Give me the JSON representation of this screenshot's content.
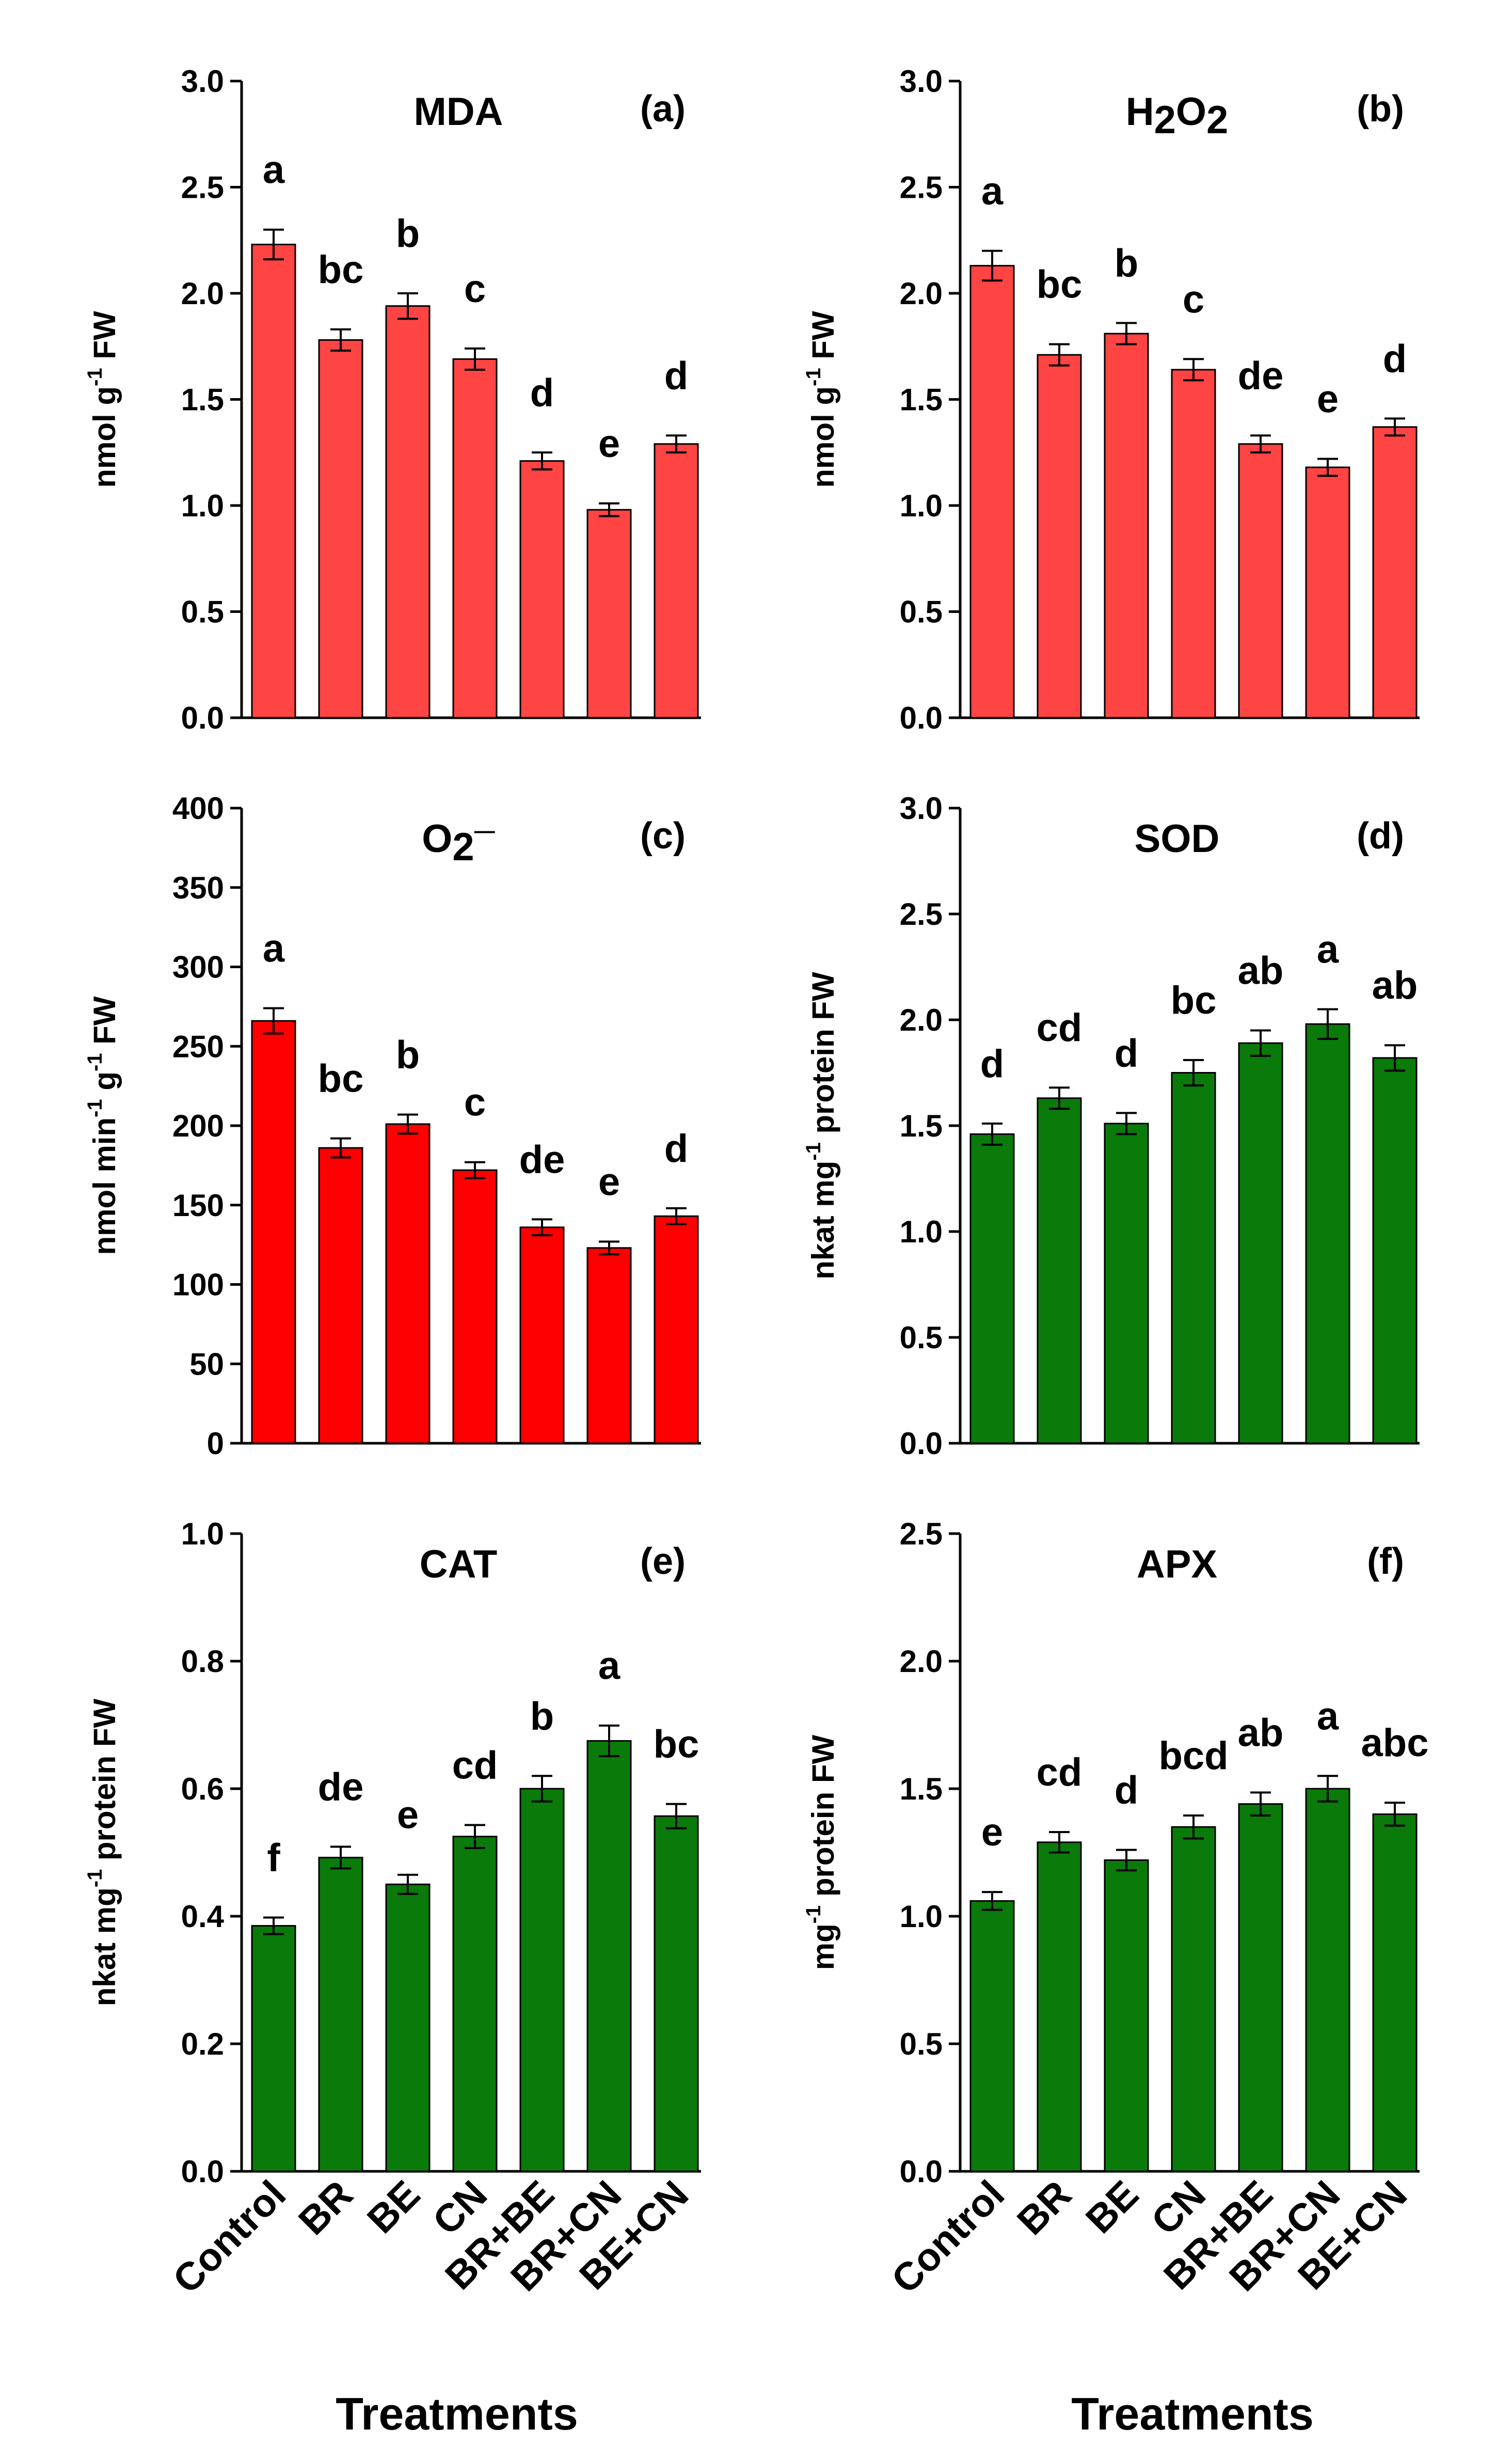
{
  "figure": {
    "x_axis_title": "Treatments",
    "colors": {
      "red": "#ff4444",
      "bright_red": "#ff0000",
      "green": "#0a7a0a"
    }
  },
  "chart_data": [
    {
      "type": "bar",
      "id": "a",
      "title": "MDA",
      "panel_label": "(a)",
      "ylabel": "nmol g",
      "ylabel_sup": "-1",
      "ylabel_suffix": " FW",
      "categories": [
        "Control",
        "BR",
        "BE",
        "CN",
        "BR+BE",
        "BR+CN",
        "BE+CN"
      ],
      "values": [
        2.23,
        1.78,
        1.94,
        1.69,
        1.21,
        0.98,
        1.29
      ],
      "errors": [
        0.07,
        0.05,
        0.06,
        0.05,
        0.04,
        0.03,
        0.04
      ],
      "letters": [
        "a",
        "bc",
        "b",
        "c",
        "d",
        "e",
        "d"
      ],
      "ylim": [
        0,
        3.0
      ],
      "yticks": [
        0,
        0.5,
        1.0,
        1.5,
        2.0,
        2.5,
        3.0
      ],
      "ytick_decimals": 1,
      "color": "#ff4444",
      "show_xticklabels": false
    },
    {
      "type": "bar",
      "id": "b",
      "title": "H",
      "title_sub": "2",
      "title_mid": "O",
      "title_sub2": "2",
      "panel_label": "(b)",
      "ylabel": "nmol g",
      "ylabel_sup": "-1",
      "ylabel_suffix": " FW",
      "categories": [
        "Control",
        "BR",
        "BE",
        "CN",
        "BR+BE",
        "BR+CN",
        "BE+CN"
      ],
      "values": [
        2.13,
        1.71,
        1.81,
        1.64,
        1.29,
        1.18,
        1.37
      ],
      "errors": [
        0.07,
        0.05,
        0.05,
        0.05,
        0.04,
        0.04,
        0.04
      ],
      "letters": [
        "a",
        "bc",
        "b",
        "c",
        "de",
        "e",
        "d"
      ],
      "ylim": [
        0,
        3.0
      ],
      "yticks": [
        0,
        0.5,
        1.0,
        1.5,
        2.0,
        2.5,
        3.0
      ],
      "ytick_decimals": 1,
      "color": "#ff4444",
      "show_xticklabels": false
    },
    {
      "type": "bar",
      "id": "c",
      "title": "O",
      "title_sub": "2",
      "title_sup": "—",
      "panel_label": "(c)",
      "ylabel": "nmol min",
      "ylabel_sup": "-1",
      "ylabel_mid": " g",
      "ylabel_sup2": "-1",
      "ylabel_suffix": " FW",
      "categories": [
        "Control",
        "BR",
        "BE",
        "CN",
        "BR+BE",
        "BR+CN",
        "BE+CN"
      ],
      "values": [
        266,
        186,
        201,
        172,
        136,
        123,
        143
      ],
      "errors": [
        8,
        6,
        6,
        5,
        5,
        4,
        5
      ],
      "letters": [
        "a",
        "bc",
        "b",
        "c",
        "de",
        "e",
        "d"
      ],
      "ylim": [
        0,
        400
      ],
      "yticks": [
        0,
        50,
        100,
        150,
        200,
        250,
        300,
        350,
        400
      ],
      "ytick_decimals": 0,
      "color": "#ff0000",
      "show_xticklabels": false
    },
    {
      "type": "bar",
      "id": "d",
      "title": "SOD",
      "panel_label": "(d)",
      "ylabel": "nkat mg",
      "ylabel_sup": "-1",
      "ylabel_suffix": " protein FW",
      "categories": [
        "Control",
        "BR",
        "BE",
        "CN",
        "BR+BE",
        "BR+CN",
        "BE+CN"
      ],
      "values": [
        1.46,
        1.63,
        1.51,
        1.75,
        1.89,
        1.98,
        1.82
      ],
      "errors": [
        0.05,
        0.05,
        0.05,
        0.06,
        0.06,
        0.07,
        0.06
      ],
      "letters": [
        "d",
        "cd",
        "d",
        "bc",
        "ab",
        "a",
        "ab"
      ],
      "ylim": [
        0,
        3.0
      ],
      "yticks": [
        0,
        0.5,
        1.0,
        1.5,
        2.0,
        2.5,
        3.0
      ],
      "ytick_decimals": 1,
      "color": "#0a7a0a",
      "show_xticklabels": false
    },
    {
      "type": "bar",
      "id": "e",
      "title": "CAT",
      "panel_label": "(e)",
      "ylabel": "nkat mg",
      "ylabel_sup": "-1",
      "ylabel_suffix": " protein FW",
      "categories": [
        "Control",
        "BR",
        "BE",
        "CN",
        "BR+BE",
        "BR+CN",
        "BE+CN"
      ],
      "values": [
        0.385,
        0.492,
        0.45,
        0.525,
        0.6,
        0.675,
        0.557
      ],
      "errors": [
        0.013,
        0.017,
        0.015,
        0.018,
        0.02,
        0.024,
        0.019
      ],
      "letters": [
        "f",
        "de",
        "e",
        "cd",
        "b",
        "a",
        "bc"
      ],
      "ylim": [
        0,
        1.0
      ],
      "yticks": [
        0,
        0.2,
        0.4,
        0.6,
        0.8,
        1.0
      ],
      "ytick_decimals": 1,
      "color": "#0a7a0a",
      "show_xticklabels": true
    },
    {
      "type": "bar",
      "id": "f",
      "title": "APX",
      "panel_label": "(f)",
      "ylabel": "mg",
      "ylabel_sup": "-1",
      "ylabel_suffix": " protein FW",
      "categories": [
        "Control",
        "BR",
        "BE",
        "CN",
        "BR+BE",
        "BR+CN",
        "BE+CN"
      ],
      "values": [
        1.06,
        1.29,
        1.22,
        1.35,
        1.44,
        1.5,
        1.4
      ],
      "errors": [
        0.035,
        0.04,
        0.04,
        0.045,
        0.045,
        0.05,
        0.045
      ],
      "letters": [
        "e",
        "cd",
        "d",
        "bcd",
        "ab",
        "a",
        "abc"
      ],
      "ylim": [
        0,
        2.5
      ],
      "yticks": [
        0,
        0.5,
        1.0,
        1.5,
        2.0,
        2.5
      ],
      "ytick_decimals": 1,
      "color": "#0a7a0a",
      "show_xticklabels": true
    }
  ]
}
